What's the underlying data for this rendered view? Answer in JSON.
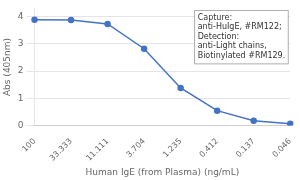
{
  "chart_data": {
    "type": "line",
    "categories": [
      "100",
      "33.333",
      "11.111",
      "3.704",
      "1.235",
      "0.412",
      "0.137",
      "0.046"
    ],
    "values": [
      3.88,
      3.87,
      3.73,
      2.82,
      1.38,
      0.55,
      0.18,
      0.07
    ],
    "color": "#4472c4",
    "marker": "circle",
    "xlabel": "Human IgE (from Plasma) (ng/mL)",
    "ylabel": "Abs (405nm)",
    "ylim": [
      0,
      4.3
    ],
    "yticks": [
      0,
      1,
      2,
      3,
      4
    ],
    "grid": true,
    "annotation": [
      "Capture:",
      "anti-HuIgE, #RM122;",
      "Detection:",
      "anti-Light chains,",
      "Biotinylated #RM129."
    ]
  }
}
